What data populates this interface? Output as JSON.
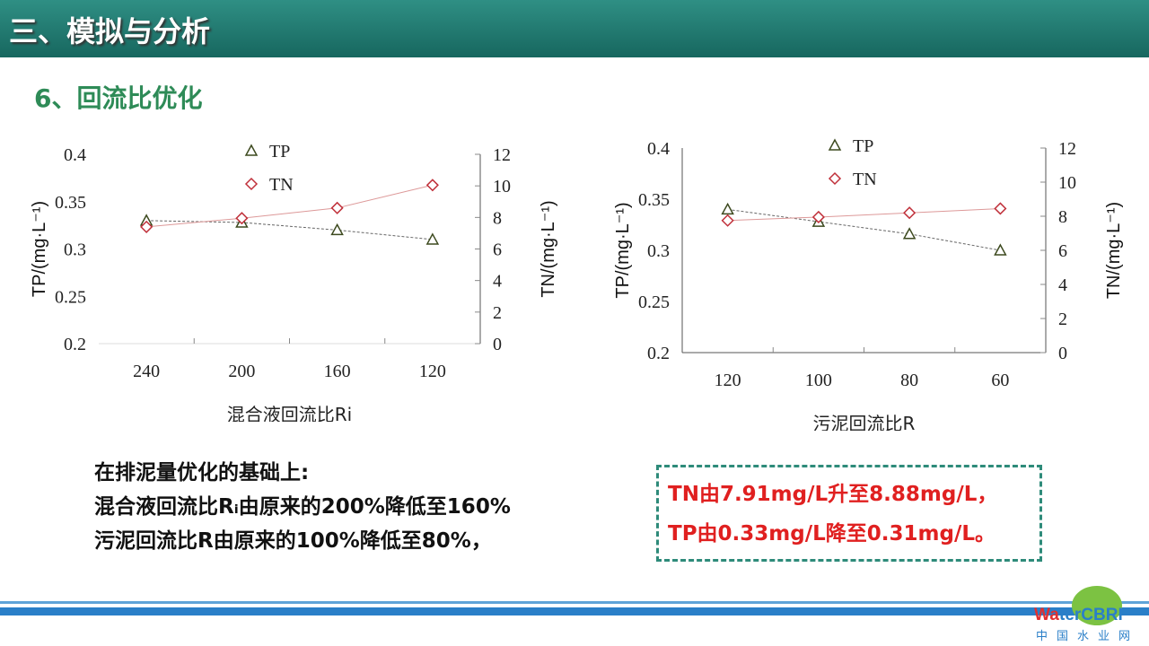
{
  "header": {
    "title": "三、模拟与分析"
  },
  "subtitle": "6、回流比优化",
  "colors": {
    "tp": "#3d4a1f",
    "tn": "#c0303a",
    "accent": "#1f7a70"
  },
  "chart_data": [
    {
      "type": "line",
      "xlabel": "混合液回流比Ri",
      "ylabel": "TP/(mg·L⁻¹)",
      "y2label": "TN/(mg·L⁻¹)",
      "categories": [
        "240",
        "200",
        "160",
        "120"
      ],
      "ylim": [
        0.2,
        0.4
      ],
      "yticks": [
        "0.2",
        "0.25",
        "0.3",
        "0.35",
        "0.4"
      ],
      "y2lim": [
        0,
        12
      ],
      "y2ticks": [
        "0",
        "2",
        "4",
        "6",
        "8",
        "10",
        "12"
      ],
      "legend": [
        "TP",
        "TN"
      ],
      "series": [
        {
          "name": "TP",
          "axis": "left",
          "values": [
            0.33,
            0.328,
            0.32,
            0.31
          ]
        },
        {
          "name": "TN",
          "axis": "right",
          "values": [
            7.4,
            7.95,
            8.6,
            10.05
          ]
        }
      ]
    },
    {
      "type": "line",
      "xlabel": "污泥回流比R",
      "ylabel": "TP/(mg·L⁻¹)",
      "y2label": "TN/(mg·L⁻¹)",
      "categories": [
        "120",
        "100",
        "80",
        "60"
      ],
      "ylim": [
        0.2,
        0.4
      ],
      "yticks": [
        "0.2",
        "0.25",
        "0.3",
        "0.35",
        "0.4"
      ],
      "y2lim": [
        0,
        12
      ],
      "y2ticks": [
        "0",
        "2",
        "4",
        "6",
        "8",
        "10",
        "12"
      ],
      "legend": [
        "TP",
        "TN"
      ],
      "series": [
        {
          "name": "TP",
          "axis": "left",
          "values": [
            0.34,
            0.328,
            0.316,
            0.3
          ]
        },
        {
          "name": "TN",
          "axis": "right",
          "values": [
            7.75,
            7.95,
            8.2,
            8.45
          ]
        }
      ]
    }
  ],
  "notes": {
    "line1": "在排泥量优化的基础上:",
    "line2": "混合液回流比Rᵢ由原来的200%降低至160%",
    "line3": "污泥回流比R由原来的100%降低至80%，"
  },
  "result": {
    "line1": "TN由7.91mg/L升至8.88mg/L，",
    "line2": "TP由0.33mg/L降至0.31mg/L。"
  },
  "logo": {
    "text": "WaterCBRI",
    "sub": "中国水业网"
  }
}
